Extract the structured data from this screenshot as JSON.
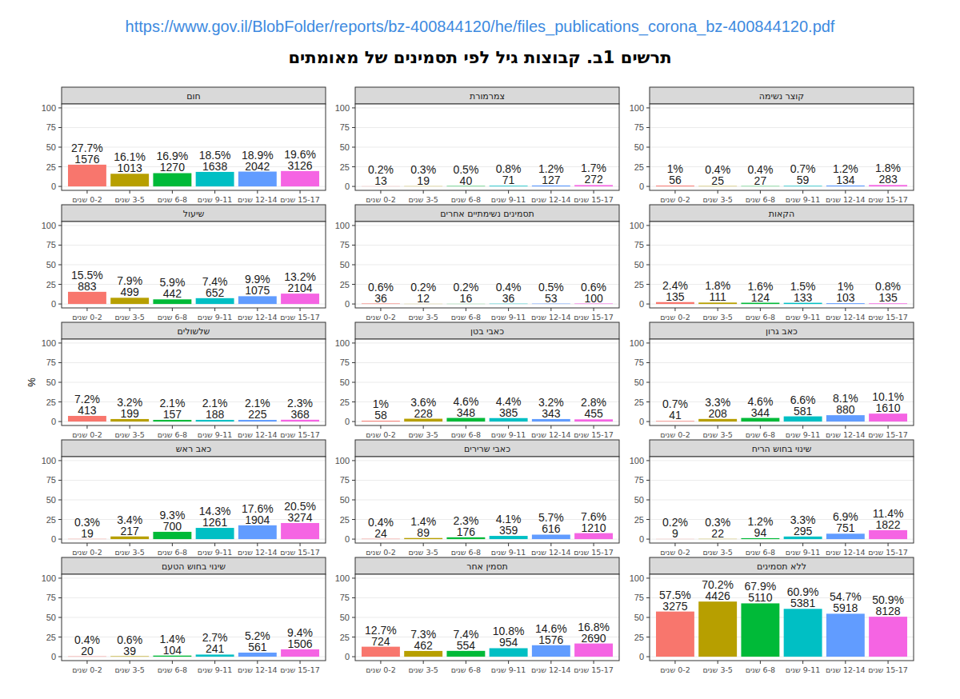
{
  "source_url": "https://www.gov.il/BlobFolder/reports/bz-400844120/he/files_publications_corona_bz-400844120.pdf",
  "title": "תרשים 1ב. קבוצות גיל לפי תסמינים של מאומתים",
  "y_label": "%",
  "chart_data": [
    {
      "type": "bar",
      "title": "חום",
      "categories": [
        "0-2 שנים",
        "3-5 שנים",
        "6-8 שנים",
        "9-11 שנים",
        "12-14 שנים",
        "15-17 שנים"
      ],
      "values": [
        27.7,
        16.1,
        16.9,
        18.5,
        18.9,
        19.6
      ],
      "value_labels": [
        "27.7%",
        "16.1%",
        "16.9%",
        "18.5%",
        "18.9%",
        "19.6%"
      ],
      "counts": [
        1576,
        1013,
        1270,
        1638,
        2042,
        3126
      ],
      "colors": [
        "#F8766D",
        "#B79F00",
        "#00BA38",
        "#00BFC4",
        "#619CFF",
        "#F564E3"
      ],
      "ylim": [
        -5,
        105
      ],
      "yticks": [
        0,
        25,
        50,
        75,
        100
      ],
      "grid": true,
      "data_labels": true
    },
    {
      "type": "bar",
      "title": "צמרמורת",
      "categories": [
        "0-2 שנים",
        "3-5 שנים",
        "6-8 שנים",
        "9-11 שנים",
        "12-14 שנים",
        "15-17 שנים"
      ],
      "values": [
        0.2,
        0.3,
        0.5,
        0.8,
        1.2,
        1.7
      ],
      "value_labels": [
        "0.2%",
        "0.3%",
        "0.5%",
        "0.8%",
        "1.2%",
        "1.7%"
      ],
      "counts": [
        13,
        19,
        40,
        71,
        127,
        272
      ],
      "colors": [
        "#F8766D",
        "#B79F00",
        "#00BA38",
        "#00BFC4",
        "#619CFF",
        "#F564E3"
      ],
      "ylim": [
        -5,
        105
      ],
      "yticks": [
        0,
        25,
        50,
        75,
        100
      ],
      "grid": true,
      "data_labels": true
    },
    {
      "type": "bar",
      "title": "קוצר נשימה",
      "categories": [
        "0-2 שנים",
        "3-5 שנים",
        "6-8 שנים",
        "9-11 שנים",
        "12-14 שנים",
        "15-17 שנים"
      ],
      "values": [
        1,
        0.4,
        0.4,
        0.7,
        1.2,
        1.8
      ],
      "value_labels": [
        "1%",
        "0.4%",
        "0.4%",
        "0.7%",
        "1.2%",
        "1.8%"
      ],
      "counts": [
        56,
        25,
        27,
        59,
        134,
        283
      ],
      "colors": [
        "#F8766D",
        "#B79F00",
        "#00BA38",
        "#00BFC4",
        "#619CFF",
        "#F564E3"
      ],
      "ylim": [
        -5,
        105
      ],
      "yticks": [
        0,
        25,
        50,
        75,
        100
      ],
      "grid": true,
      "data_labels": true
    },
    {
      "type": "bar",
      "title": "שיעול",
      "categories": [
        "0-2 שנים",
        "3-5 שנים",
        "6-8 שנים",
        "9-11 שנים",
        "12-14 שנים",
        "15-17 שנים"
      ],
      "values": [
        15.5,
        7.9,
        5.9,
        7.4,
        9.9,
        13.2
      ],
      "value_labels": [
        "15.5%",
        "7.9%",
        "5.9%",
        "7.4%",
        "9.9%",
        "13.2%"
      ],
      "counts": [
        883,
        499,
        442,
        652,
        1075,
        2104
      ],
      "colors": [
        "#F8766D",
        "#B79F00",
        "#00BA38",
        "#00BFC4",
        "#619CFF",
        "#F564E3"
      ],
      "ylim": [
        -5,
        105
      ],
      "yticks": [
        0,
        25,
        50,
        75,
        100
      ],
      "grid": true,
      "data_labels": true
    },
    {
      "type": "bar",
      "title": "תסמינים נשימתיים אחרים",
      "categories": [
        "0-2 שנים",
        "3-5 שנים",
        "6-8 שנים",
        "9-11 שנים",
        "12-14 שנים",
        "15-17 שנים"
      ],
      "values": [
        0.6,
        0.2,
        0.2,
        0.4,
        0.5,
        0.6
      ],
      "value_labels": [
        "0.6%",
        "0.2%",
        "0.2%",
        "0.4%",
        "0.5%",
        "0.6%"
      ],
      "counts": [
        36,
        12,
        16,
        36,
        53,
        100
      ],
      "colors": [
        "#F8766D",
        "#B79F00",
        "#00BA38",
        "#00BFC4",
        "#619CFF",
        "#F564E3"
      ],
      "ylim": [
        -5,
        105
      ],
      "yticks": [
        0,
        25,
        50,
        75,
        100
      ],
      "grid": true,
      "data_labels": true
    },
    {
      "type": "bar",
      "title": "הקאות",
      "categories": [
        "0-2 שנים",
        "3-5 שנים",
        "6-8 שנים",
        "9-11 שנים",
        "12-14 שנים",
        "15-17 שנים"
      ],
      "values": [
        2.4,
        1.8,
        1.6,
        1.5,
        1,
        0.8
      ],
      "value_labels": [
        "2.4%",
        "1.8%",
        "1.6%",
        "1.5%",
        "1%",
        "0.8%"
      ],
      "counts": [
        135,
        111,
        124,
        133,
        103,
        135
      ],
      "colors": [
        "#F8766D",
        "#B79F00",
        "#00BA38",
        "#00BFC4",
        "#619CFF",
        "#F564E3"
      ],
      "ylim": [
        -5,
        105
      ],
      "yticks": [
        0,
        25,
        50,
        75,
        100
      ],
      "grid": true,
      "data_labels": true
    },
    {
      "type": "bar",
      "title": "שלשולים",
      "categories": [
        "0-2 שנים",
        "3-5 שנים",
        "6-8 שנים",
        "9-11 שנים",
        "12-14 שנים",
        "15-17 שנים"
      ],
      "values": [
        7.2,
        3.2,
        2.1,
        2.1,
        2.1,
        2.3
      ],
      "value_labels": [
        "7.2%",
        "3.2%",
        "2.1%",
        "2.1%",
        "2.1%",
        "2.3%"
      ],
      "counts": [
        413,
        199,
        157,
        188,
        225,
        368
      ],
      "colors": [
        "#F8766D",
        "#B79F00",
        "#00BA38",
        "#00BFC4",
        "#619CFF",
        "#F564E3"
      ],
      "ylim": [
        -5,
        105
      ],
      "yticks": [
        0,
        25,
        50,
        75,
        100
      ],
      "grid": true,
      "data_labels": true
    },
    {
      "type": "bar",
      "title": "כאבי בטן",
      "categories": [
        "0-2 שנים",
        "3-5 שנים",
        "6-8 שנים",
        "9-11 שנים",
        "12-14 שנים",
        "15-17 שנים"
      ],
      "values": [
        1,
        3.6,
        4.6,
        4.4,
        3.2,
        2.8
      ],
      "value_labels": [
        "1%",
        "3.6%",
        "4.6%",
        "4.4%",
        "3.2%",
        "2.8%"
      ],
      "counts": [
        58,
        228,
        348,
        385,
        343,
        455
      ],
      "colors": [
        "#F8766D",
        "#B79F00",
        "#00BA38",
        "#00BFC4",
        "#619CFF",
        "#F564E3"
      ],
      "ylim": [
        -5,
        105
      ],
      "yticks": [
        0,
        25,
        50,
        75,
        100
      ],
      "grid": true,
      "data_labels": true
    },
    {
      "type": "bar",
      "title": "כאב גרון",
      "categories": [
        "0-2 שנים",
        "3-5 שנים",
        "6-8 שנים",
        "9-11 שנים",
        "12-14 שנים",
        "15-17 שנים"
      ],
      "values": [
        0.7,
        3.3,
        4.6,
        6.6,
        8.1,
        10.1
      ],
      "value_labels": [
        "0.7%",
        "3.3%",
        "4.6%",
        "6.6%",
        "8.1%",
        "10.1%"
      ],
      "counts": [
        41,
        208,
        344,
        581,
        880,
        1610
      ],
      "colors": [
        "#F8766D",
        "#B79F00",
        "#00BA38",
        "#00BFC4",
        "#619CFF",
        "#F564E3"
      ],
      "ylim": [
        -5,
        105
      ],
      "yticks": [
        0,
        25,
        50,
        75,
        100
      ],
      "grid": true,
      "data_labels": true
    },
    {
      "type": "bar",
      "title": "כאב ראש",
      "categories": [
        "0-2 שנים",
        "3-5 שנים",
        "6-8 שנים",
        "9-11 שנים",
        "12-14 שנים",
        "15-17 שנים"
      ],
      "values": [
        0.3,
        3.4,
        9.3,
        14.3,
        17.6,
        20.5
      ],
      "value_labels": [
        "0.3%",
        "3.4%",
        "9.3%",
        "14.3%",
        "17.6%",
        "20.5%"
      ],
      "counts": [
        19,
        217,
        700,
        1261,
        1904,
        3274
      ],
      "colors": [
        "#F8766D",
        "#B79F00",
        "#00BA38",
        "#00BFC4",
        "#619CFF",
        "#F564E3"
      ],
      "ylim": [
        -5,
        105
      ],
      "yticks": [
        0,
        25,
        50,
        75,
        100
      ],
      "grid": true,
      "data_labels": true
    },
    {
      "type": "bar",
      "title": "כאבי שרירים",
      "categories": [
        "0-2 שנים",
        "3-5 שנים",
        "6-8 שנים",
        "9-11 שנים",
        "12-14 שנים",
        "15-17 שנים"
      ],
      "values": [
        0.4,
        1.4,
        2.3,
        4.1,
        5.7,
        7.6
      ],
      "value_labels": [
        "0.4%",
        "1.4%",
        "2.3%",
        "4.1%",
        "5.7%",
        "7.6%"
      ],
      "counts": [
        24,
        89,
        176,
        359,
        616,
        1210
      ],
      "colors": [
        "#F8766D",
        "#B79F00",
        "#00BA38",
        "#00BFC4",
        "#619CFF",
        "#F564E3"
      ],
      "ylim": [
        -5,
        105
      ],
      "yticks": [
        0,
        25,
        50,
        75,
        100
      ],
      "grid": true,
      "data_labels": true
    },
    {
      "type": "bar",
      "title": "שינוי בחוש הריח",
      "categories": [
        "0-2 שנים",
        "3-5 שנים",
        "6-8 שנים",
        "9-11 שנים",
        "12-14 שנים",
        "15-17 שנים"
      ],
      "values": [
        0.2,
        0.3,
        1.2,
        3.3,
        6.9,
        11.4
      ],
      "value_labels": [
        "0.2%",
        "0.3%",
        "1.2%",
        "3.3%",
        "6.9%",
        "11.4%"
      ],
      "counts": [
        9,
        22,
        94,
        295,
        751,
        1822
      ],
      "colors": [
        "#F8766D",
        "#B79F00",
        "#00BA38",
        "#00BFC4",
        "#619CFF",
        "#F564E3"
      ],
      "ylim": [
        -5,
        105
      ],
      "yticks": [
        0,
        25,
        50,
        75,
        100
      ],
      "grid": true,
      "data_labels": true
    },
    {
      "type": "bar",
      "title": "שינוי בחוש הטעם",
      "categories": [
        "0-2 שנים",
        "3-5 שנים",
        "6-8 שנים",
        "9-11 שנים",
        "12-14 שנים",
        "15-17 שנים"
      ],
      "values": [
        0.4,
        0.6,
        1.4,
        2.7,
        5.2,
        9.4
      ],
      "value_labels": [
        "0.4%",
        "0.6%",
        "1.4%",
        "2.7%",
        "5.2%",
        "9.4%"
      ],
      "counts": [
        20,
        39,
        104,
        241,
        561,
        1506
      ],
      "colors": [
        "#F8766D",
        "#B79F00",
        "#00BA38",
        "#00BFC4",
        "#619CFF",
        "#F564E3"
      ],
      "ylim": [
        -5,
        105
      ],
      "yticks": [
        0,
        25,
        50,
        75,
        100
      ],
      "grid": true,
      "data_labels": true
    },
    {
      "type": "bar",
      "title": "תסמין אחר",
      "categories": [
        "0-2 שנים",
        "3-5 שנים",
        "6-8 שנים",
        "9-11 שנים",
        "12-14 שנים",
        "15-17 שנים"
      ],
      "values": [
        12.7,
        7.3,
        7.4,
        10.8,
        14.6,
        16.8
      ],
      "value_labels": [
        "12.7%",
        "7.3%",
        "7.4%",
        "10.8%",
        "14.6%",
        "16.8%"
      ],
      "counts": [
        724,
        462,
        554,
        954,
        1576,
        2690
      ],
      "colors": [
        "#F8766D",
        "#B79F00",
        "#00BA38",
        "#00BFC4",
        "#619CFF",
        "#F564E3"
      ],
      "ylim": [
        -5,
        105
      ],
      "yticks": [
        0,
        25,
        50,
        75,
        100
      ],
      "grid": true,
      "data_labels": true
    },
    {
      "type": "bar",
      "title": "ללא תסמינים",
      "categories": [
        "0-2 שנים",
        "3-5 שנים",
        "6-8 שנים",
        "9-11 שנים",
        "12-14 שנים",
        "15-17 שנים"
      ],
      "values": [
        57.5,
        70.2,
        67.9,
        60.9,
        54.7,
        50.9
      ],
      "value_labels": [
        "57.5%",
        "70.2%",
        "67.9%",
        "60.9%",
        "54.7%",
        "50.9%"
      ],
      "counts": [
        3275,
        4426,
        5110,
        5381,
        5918,
        8128
      ],
      "colors": [
        "#F8766D",
        "#B79F00",
        "#00BA38",
        "#00BFC4",
        "#619CFF",
        "#F564E3"
      ],
      "ylim": [
        -5,
        105
      ],
      "yticks": [
        0,
        25,
        50,
        75,
        100
      ],
      "grid": true,
      "data_labels": true
    }
  ]
}
